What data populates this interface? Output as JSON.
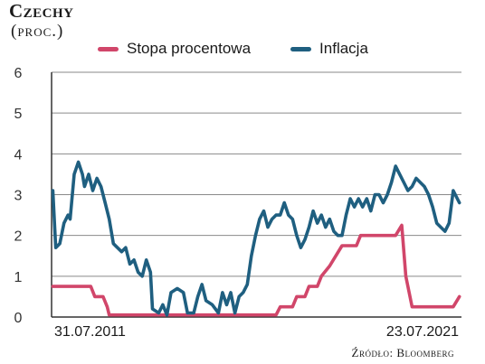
{
  "header": {
    "title": "Czechy",
    "subtitle": "(proc.)"
  },
  "source": "Źródło: Bloomberg",
  "colors": {
    "rate": "#d1466a",
    "inflation": "#1f5f80",
    "grid": "#8a8a8a"
  },
  "chart_data": {
    "type": "line",
    "title": "Czechy",
    "subtitle": "(proc.)",
    "ylim": [
      0,
      6
    ],
    "yticks": [
      "0",
      "1",
      "2",
      "3",
      "4",
      "5",
      "6"
    ],
    "xlabels": [
      "31.07.2011",
      "23.07.2021"
    ],
    "xrange": [
      "2011-07",
      "2021-07"
    ],
    "grid": true,
    "legend_position": "top",
    "series": [
      {
        "name": "Stopa procentowa",
        "color": "#d1466a",
        "points": [
          [
            2011.58,
            0.75
          ],
          [
            2011.75,
            0.75
          ],
          [
            2012.0,
            0.75
          ],
          [
            2012.25,
            0.75
          ],
          [
            2012.5,
            0.75
          ],
          [
            2012.6,
            0.5
          ],
          [
            2012.8,
            0.5
          ],
          [
            2012.9,
            0.25
          ],
          [
            2012.95,
            0.05
          ],
          [
            2013.5,
            0.05
          ],
          [
            2014.5,
            0.05
          ],
          [
            2015.5,
            0.05
          ],
          [
            2016.5,
            0.05
          ],
          [
            2017.0,
            0.05
          ],
          [
            2017.1,
            0.25
          ],
          [
            2017.4,
            0.25
          ],
          [
            2017.5,
            0.5
          ],
          [
            2017.7,
            0.5
          ],
          [
            2017.8,
            0.75
          ],
          [
            2018.0,
            0.75
          ],
          [
            2018.1,
            1.0
          ],
          [
            2018.3,
            1.25
          ],
          [
            2018.45,
            1.5
          ],
          [
            2018.6,
            1.75
          ],
          [
            2018.95,
            1.75
          ],
          [
            2019.05,
            2.0
          ],
          [
            2019.5,
            2.0
          ],
          [
            2019.9,
            2.0
          ],
          [
            2020.05,
            2.25
          ],
          [
            2020.15,
            1.0
          ],
          [
            2020.3,
            0.25
          ],
          [
            2020.9,
            0.25
          ],
          [
            2021.3,
            0.25
          ],
          [
            2021.45,
            0.5
          ]
        ]
      },
      {
        "name": "Inflacja",
        "color": "#1f5f80",
        "points": [
          [
            2011.58,
            3.1
          ],
          [
            2011.65,
            1.7
          ],
          [
            2011.75,
            1.8
          ],
          [
            2011.85,
            2.3
          ],
          [
            2011.95,
            2.5
          ],
          [
            2012.0,
            2.4
          ],
          [
            2012.1,
            3.5
          ],
          [
            2012.2,
            3.8
          ],
          [
            2012.3,
            3.5
          ],
          [
            2012.35,
            3.2
          ],
          [
            2012.45,
            3.5
          ],
          [
            2012.55,
            3.1
          ],
          [
            2012.65,
            3.4
          ],
          [
            2012.75,
            3.2
          ],
          [
            2012.85,
            2.8
          ],
          [
            2012.95,
            2.4
          ],
          [
            2013.05,
            1.8
          ],
          [
            2013.15,
            1.7
          ],
          [
            2013.25,
            1.6
          ],
          [
            2013.35,
            1.7
          ],
          [
            2013.45,
            1.3
          ],
          [
            2013.55,
            1.4
          ],
          [
            2013.65,
            1.1
          ],
          [
            2013.75,
            1.0
          ],
          [
            2013.85,
            1.4
          ],
          [
            2013.95,
            1.1
          ],
          [
            2014.0,
            0.2
          ],
          [
            2014.15,
            0.1
          ],
          [
            2014.25,
            0.3
          ],
          [
            2014.35,
            0.05
          ],
          [
            2014.45,
            0.6
          ],
          [
            2014.6,
            0.7
          ],
          [
            2014.75,
            0.6
          ],
          [
            2014.85,
            0.1
          ],
          [
            2015.0,
            0.1
          ],
          [
            2015.1,
            0.5
          ],
          [
            2015.2,
            0.8
          ],
          [
            2015.3,
            0.4
          ],
          [
            2015.45,
            0.3
          ],
          [
            2015.6,
            0.1
          ],
          [
            2015.7,
            0.6
          ],
          [
            2015.8,
            0.3
          ],
          [
            2015.9,
            0.6
          ],
          [
            2016.0,
            0.1
          ],
          [
            2016.1,
            0.5
          ],
          [
            2016.2,
            0.6
          ],
          [
            2016.3,
            0.8
          ],
          [
            2016.4,
            1.5
          ],
          [
            2016.5,
            2.0
          ],
          [
            2016.6,
            2.4
          ],
          [
            2016.7,
            2.6
          ],
          [
            2016.8,
            2.2
          ],
          [
            2016.9,
            2.4
          ],
          [
            2017.0,
            2.5
          ],
          [
            2017.1,
            2.5
          ],
          [
            2017.2,
            2.8
          ],
          [
            2017.3,
            2.5
          ],
          [
            2017.4,
            2.4
          ],
          [
            2017.5,
            2.0
          ],
          [
            2017.6,
            1.7
          ],
          [
            2017.7,
            1.9
          ],
          [
            2017.8,
            2.2
          ],
          [
            2017.9,
            2.6
          ],
          [
            2018.0,
            2.3
          ],
          [
            2018.1,
            2.5
          ],
          [
            2018.2,
            2.2
          ],
          [
            2018.3,
            2.4
          ],
          [
            2018.4,
            2.1
          ],
          [
            2018.5,
            2.0
          ],
          [
            2018.6,
            2.0
          ],
          [
            2018.7,
            2.5
          ],
          [
            2018.8,
            2.9
          ],
          [
            2018.9,
            2.7
          ],
          [
            2019.0,
            2.9
          ],
          [
            2019.1,
            2.7
          ],
          [
            2019.2,
            2.9
          ],
          [
            2019.3,
            2.6
          ],
          [
            2019.4,
            3.0
          ],
          [
            2019.5,
            3.0
          ],
          [
            2019.6,
            2.8
          ],
          [
            2019.7,
            3.0
          ],
          [
            2019.8,
            3.3
          ],
          [
            2019.9,
            3.7
          ],
          [
            2020.0,
            3.5
          ],
          [
            2020.1,
            3.3
          ],
          [
            2020.2,
            3.1
          ],
          [
            2020.3,
            3.2
          ],
          [
            2020.4,
            3.4
          ],
          [
            2020.5,
            3.3
          ],
          [
            2020.6,
            3.2
          ],
          [
            2020.7,
            3.0
          ],
          [
            2020.8,
            2.7
          ],
          [
            2020.9,
            2.3
          ],
          [
            2021.0,
            2.2
          ],
          [
            2021.1,
            2.1
          ],
          [
            2021.2,
            2.3
          ],
          [
            2021.3,
            3.1
          ],
          [
            2021.45,
            2.8
          ]
        ]
      }
    ]
  }
}
